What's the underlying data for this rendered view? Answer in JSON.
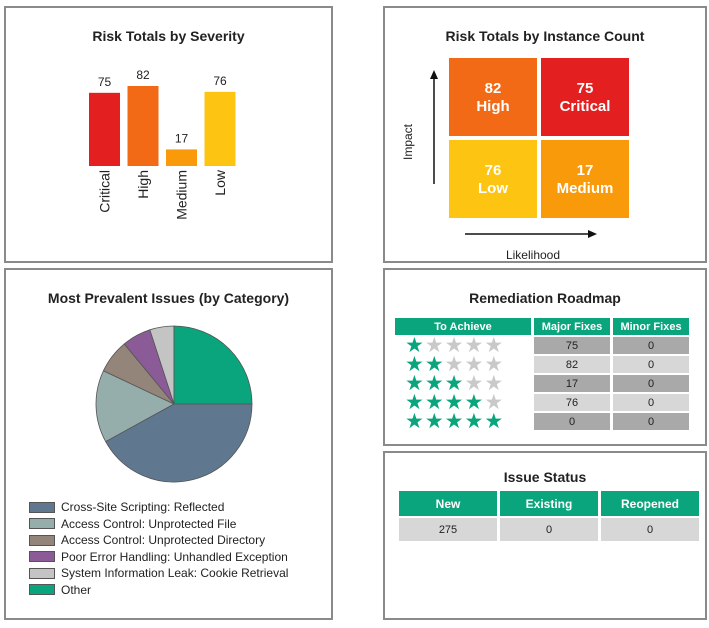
{
  "severity_panel": {
    "title": "Risk Totals by Severity"
  },
  "instance_panel": {
    "title": "Risk Totals by Instance Count",
    "ylabel": "Impact",
    "xlabel": "Likelihood"
  },
  "issues_panel": {
    "title": "Most Prevalent Issues (by Category)"
  },
  "roadmap_panel": {
    "title": "Remediation Roadmap",
    "headers": [
      "To Achieve",
      "Major Fixes",
      "Minor Fixes"
    ],
    "rows": [
      {
        "stars": 1,
        "major": "75",
        "minor": "0"
      },
      {
        "stars": 2,
        "major": "82",
        "minor": "0"
      },
      {
        "stars": 3,
        "major": "17",
        "minor": "0"
      },
      {
        "stars": 4,
        "major": "76",
        "minor": "0"
      },
      {
        "stars": 5,
        "major": "0",
        "minor": "0"
      }
    ],
    "max_stars": 5
  },
  "status_panel": {
    "title": "Issue Status",
    "headers": [
      "New",
      "Existing",
      "Reopened"
    ],
    "values": [
      "275",
      "0",
      "0"
    ]
  },
  "colors": {
    "critical": "#e41f1f",
    "high": "#f26a16",
    "medium": "#f89a0a",
    "low": "#fdc512",
    "accent": "#0aa57c"
  },
  "chart_data": [
    {
      "type": "bar",
      "title": "Risk Totals by Severity",
      "categories": [
        "Critical",
        "High",
        "Medium",
        "Low"
      ],
      "values": [
        75,
        82,
        17,
        76
      ],
      "colors": [
        "#e41f1f",
        "#f26a16",
        "#f89a0a",
        "#fdc512"
      ],
      "ylim": [
        0,
        82
      ]
    },
    {
      "type": "heatmap",
      "title": "Risk Totals by Instance Count",
      "xlabel": "Likelihood",
      "ylabel": "Impact",
      "cells": [
        {
          "label": "High",
          "value": 82,
          "impact": "high",
          "likelihood": "low",
          "color": "#f26a16"
        },
        {
          "label": "Critical",
          "value": 75,
          "impact": "high",
          "likelihood": "high",
          "color": "#e41f1f"
        },
        {
          "label": "Low",
          "value": 76,
          "impact": "low",
          "likelihood": "low",
          "color": "#fdc512"
        },
        {
          "label": "Medium",
          "value": 17,
          "impact": "low",
          "likelihood": "high",
          "color": "#f89a0a"
        }
      ]
    },
    {
      "type": "pie",
      "title": "Most Prevalent Issues (by Category)",
      "legend": "bottom-left",
      "slices": [
        {
          "label": "Cross-Site Scripting: Reflected",
          "value": 42,
          "color": "#5f7890"
        },
        {
          "label": "Access Control: Unprotected File",
          "value": 15,
          "color": "#95adab"
        },
        {
          "label": "Access Control: Unprotected Directory",
          "value": 7,
          "color": "#94857b"
        },
        {
          "label": "Poor Error Handling: Unhandled Exception",
          "value": 6,
          "color": "#8b5b98"
        },
        {
          "label": "System Information Leak: Cookie Retrieval",
          "value": 5,
          "color": "#c4c4c4"
        },
        {
          "label": "Other",
          "value": 25,
          "color": "#0aa57c"
        }
      ]
    }
  ]
}
